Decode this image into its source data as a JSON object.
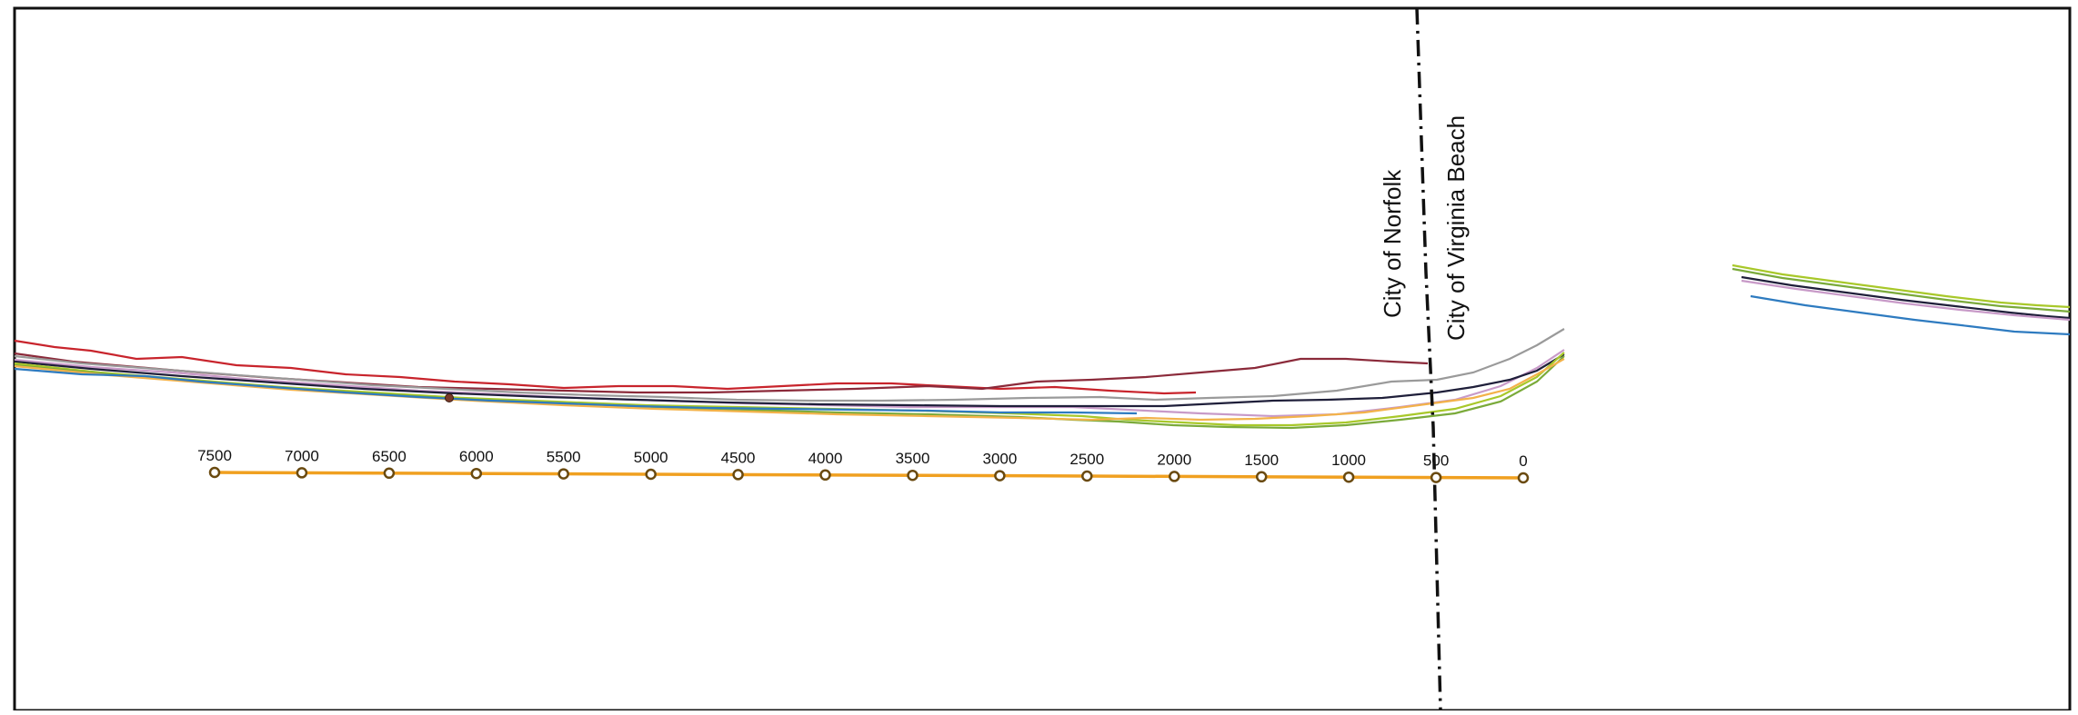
{
  "map": {
    "labels": {
      "norfolk": "City of Norfolk",
      "virginia_beach": "City of Virginia Beach"
    },
    "baseline": {
      "color": "#f0a020",
      "stations": [
        "7500",
        "7000",
        "6500",
        "6000",
        "5500",
        "5000",
        "4500",
        "4000",
        "3500",
        "3000",
        "2500",
        "2000",
        "1500",
        "1000",
        "500",
        "0"
      ]
    },
    "shoreline_colors": [
      "#c8242c",
      "#8b2a3a",
      "#1f1f3a",
      "#9a9a9a",
      "#c89ac8",
      "#a8c82a",
      "#2e7bc0",
      "#f3b24a",
      "#7aaa3a"
    ]
  }
}
